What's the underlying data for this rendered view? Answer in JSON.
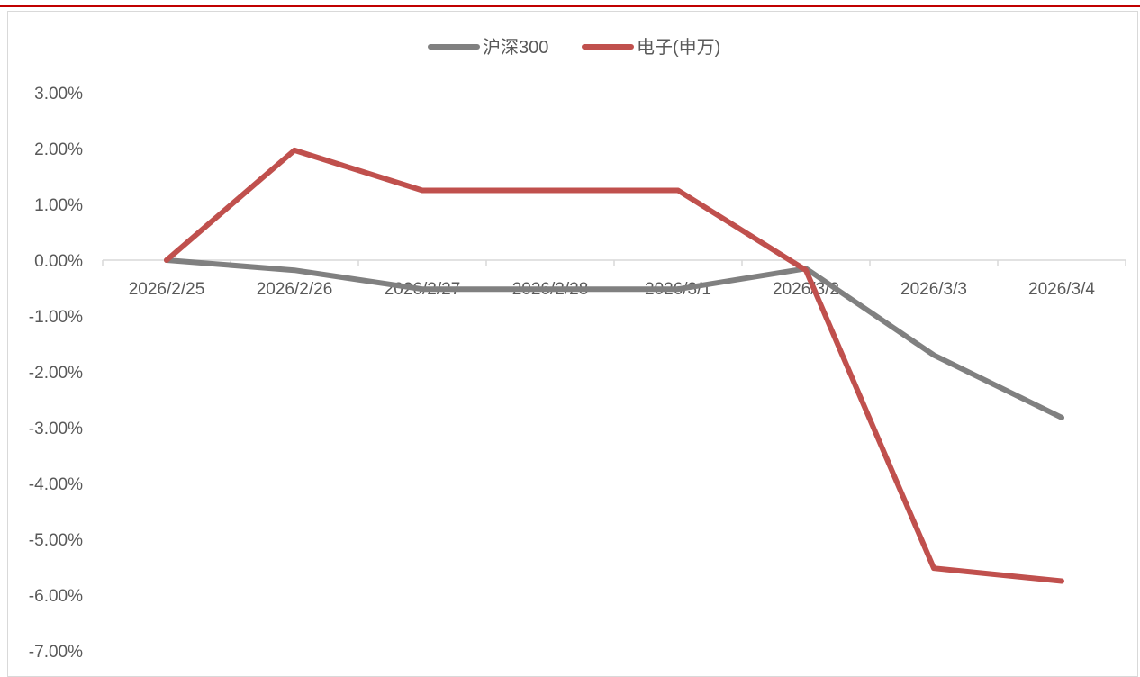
{
  "chart_data": {
    "type": "line",
    "categories": [
      "2026/2/25",
      "2026/2/26",
      "2026/2/27",
      "2026/2/28",
      "2026/3/1",
      "2026/3/2",
      "2026/3/3",
      "2026/3/4"
    ],
    "series": [
      {
        "name": "沪深300",
        "color": "#808080",
        "values": [
          0.0,
          -0.18,
          -0.52,
          -0.52,
          -0.52,
          -0.15,
          -1.7,
          -2.82
        ]
      },
      {
        "name": "电子(申万)",
        "color": "#c0504d",
        "values": [
          0.0,
          1.97,
          1.25,
          1.25,
          1.25,
          -0.18,
          -5.52,
          -5.75
        ]
      }
    ],
    "y_ticks": [
      "3.00%",
      "2.00%",
      "1.00%",
      "0.00%",
      "-1.00%",
      "-2.00%",
      "-3.00%",
      "-4.00%",
      "-5.00%",
      "-6.00%",
      "-7.00%"
    ],
    "ylim": [
      -7,
      3
    ],
    "legend_position": "top-center",
    "grid": false
  }
}
